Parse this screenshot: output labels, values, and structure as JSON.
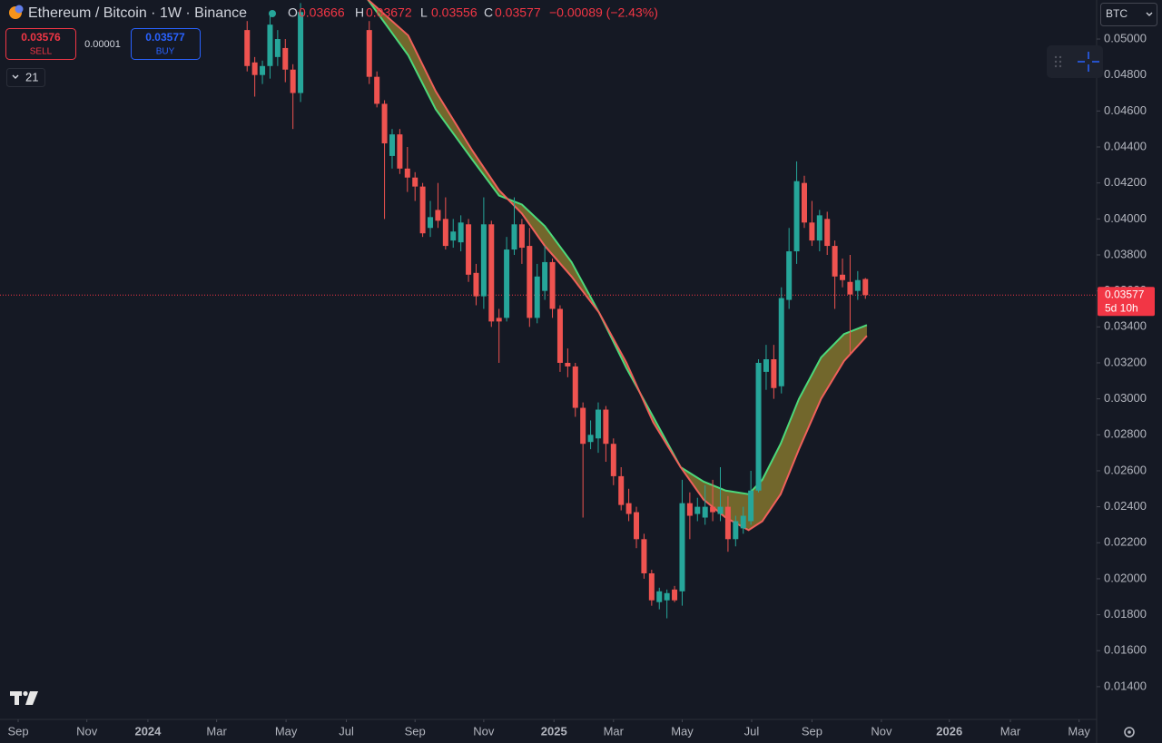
{
  "chart_data": {
    "type": "candlestick",
    "title": "Ethereum / Bitcoin · 1W · Binance",
    "ohlc_labels": {
      "o": "O",
      "h": "H",
      "l": "L",
      "c": "C"
    },
    "ohlc_values": {
      "o": "0.03666",
      "h": "0.03672",
      "l": "0.03556",
      "c": "0.03577",
      "change": "−0.00089 (−2.43%)"
    },
    "sell": {
      "price": "0.03576",
      "label": "SELL"
    },
    "spread": "0.00001",
    "buy": {
      "price": "0.03577",
      "label": "BUY"
    },
    "indicator_count": "21",
    "currency": "BTC",
    "last_price": 0.03577,
    "countdown": "5d 10h",
    "up_color": "#26a69a",
    "down_color": "#ef5350",
    "price_line_color": "#f23645",
    "ribbon_fill": "#8a7a2e",
    "grid": false,
    "ylim": [
      0.01218,
      0.05217
    ],
    "yticks": [
      {
        "value": 0.014,
        "label": "0.01400"
      },
      {
        "value": 0.016,
        "label": "0.01600"
      },
      {
        "value": 0.018,
        "label": "0.01800"
      },
      {
        "value": 0.02,
        "label": "0.02000"
      },
      {
        "value": 0.022,
        "label": "0.02200"
      },
      {
        "value": 0.024,
        "label": "0.02400"
      },
      {
        "value": 0.026,
        "label": "0.02600"
      },
      {
        "value": 0.028,
        "label": "0.02800"
      },
      {
        "value": 0.03,
        "label": "0.03000"
      },
      {
        "value": 0.032,
        "label": "0.03200"
      },
      {
        "value": 0.034,
        "label": "0.03400"
      },
      {
        "value": 0.036,
        "label": "0.03600"
      },
      {
        "value": 0.038,
        "label": "0.03800"
      },
      {
        "value": 0.04,
        "label": "0.04000"
      },
      {
        "value": 0.042,
        "label": "0.04200"
      },
      {
        "value": 0.044,
        "label": "0.04400"
      },
      {
        "value": 0.046,
        "label": "0.04600"
      },
      {
        "value": 0.048,
        "label": "0.04800"
      },
      {
        "value": 0.05,
        "label": "0.05000"
      }
    ],
    "xlim": [
      -2.38,
      141.3
    ],
    "xticks": [
      {
        "value": 0,
        "label": "Sep"
      },
      {
        "value": 9.0,
        "label": "Nov"
      },
      {
        "value": 17.0,
        "label": "2024"
      },
      {
        "value": 26.0,
        "label": "Mar"
      },
      {
        "value": 35.1,
        "label": "May"
      },
      {
        "value": 43.0,
        "label": "Jul"
      },
      {
        "value": 52.0,
        "label": "Sep"
      },
      {
        "value": 61.0,
        "label": "Nov"
      },
      {
        "value": 70.2,
        "label": "2025"
      },
      {
        "value": 78.0,
        "label": "Mar"
      },
      {
        "value": 87.0,
        "label": "May"
      },
      {
        "value": 96.1,
        "label": "Jul"
      },
      {
        "value": 104.0,
        "label": "Sep"
      },
      {
        "value": 113.1,
        "label": "Nov"
      },
      {
        "value": 122.0,
        "label": "2026"
      },
      {
        "value": 130.0,
        "label": "Mar"
      },
      {
        "value": 139.0,
        "label": "May"
      }
    ],
    "candles": {
      "x": [
        30,
        31,
        32,
        33,
        34,
        35,
        36,
        37,
        46,
        47,
        48,
        49,
        50,
        51,
        52,
        53,
        54,
        55,
        56,
        57,
        58,
        59,
        60,
        61,
        62,
        63,
        64,
        65,
        66,
        67,
        68,
        69,
        70,
        71,
        72,
        73,
        74,
        75,
        76,
        77,
        78,
        79,
        80,
        81,
        82,
        83,
        84,
        85,
        86,
        87,
        88,
        89,
        90,
        91,
        92,
        93,
        94,
        95,
        96,
        97,
        98,
        99,
        100,
        101,
        102,
        103,
        104,
        105,
        106,
        107,
        108,
        109,
        110,
        111
      ],
      "open": [
        0.0505,
        0.0487,
        0.048,
        0.0485,
        0.049,
        0.0495,
        0.0483,
        0.047,
        0.0505,
        0.0479,
        0.0464,
        0.0435,
        0.0447,
        0.0428,
        0.0423,
        0.0418,
        0.0395,
        0.0405,
        0.04,
        0.0388,
        0.0387,
        0.0397,
        0.037,
        0.0357,
        0.0397,
        0.0345,
        0.0345,
        0.0383,
        0.0397,
        0.0385,
        0.0345,
        0.036,
        0.0376,
        0.035,
        0.032,
        0.0318,
        0.0295,
        0.0276,
        0.0278,
        0.0294,
        0.0275,
        0.0257,
        0.0242,
        0.0237,
        0.0222,
        0.0203,
        0.0187,
        0.0188,
        0.0194,
        0.0193,
        0.0242,
        0.0236,
        0.0234,
        0.024,
        0.0236,
        0.024,
        0.0222,
        0.0228,
        0.0232,
        0.0249,
        0.0315,
        0.0322,
        0.0307,
        0.0355,
        0.0382,
        0.042,
        0.0398,
        0.0388,
        0.04,
        0.0385,
        0.0369,
        0.0365,
        0.036,
        0.03666
      ],
      "high": [
        0.051,
        0.049,
        0.0488,
        0.0515,
        0.0505,
        0.05,
        0.0486,
        0.052,
        0.051,
        0.0482,
        0.0466,
        0.045,
        0.045,
        0.044,
        0.0426,
        0.042,
        0.041,
        0.042,
        0.0412,
        0.04,
        0.0402,
        0.04,
        0.0375,
        0.0412,
        0.0399,
        0.035,
        0.039,
        0.0412,
        0.04,
        0.0395,
        0.0375,
        0.0385,
        0.0378,
        0.0352,
        0.0328,
        0.032,
        0.0298,
        0.0288,
        0.0298,
        0.0296,
        0.0278,
        0.0262,
        0.025,
        0.024,
        0.0225,
        0.0205,
        0.0195,
        0.0194,
        0.0196,
        0.0255,
        0.0248,
        0.0245,
        0.0252,
        0.0255,
        0.0262,
        0.0246,
        0.0235,
        0.024,
        0.026,
        0.0322,
        0.033,
        0.033,
        0.0362,
        0.0395,
        0.0432,
        0.0424,
        0.041,
        0.0405,
        0.0404,
        0.0388,
        0.0378,
        0.038,
        0.0371,
        0.03672
      ],
      "low": [
        0.0482,
        0.0468,
        0.0475,
        0.0478,
        0.0485,
        0.0476,
        0.045,
        0.0465,
        0.0475,
        0.0462,
        0.04,
        0.0428,
        0.0425,
        0.0415,
        0.041,
        0.039,
        0.039,
        0.0395,
        0.0383,
        0.0384,
        0.0382,
        0.0365,
        0.0352,
        0.035,
        0.034,
        0.032,
        0.0343,
        0.038,
        0.0375,
        0.034,
        0.0342,
        0.0355,
        0.0345,
        0.0315,
        0.0312,
        0.029,
        0.0234,
        0.0272,
        0.027,
        0.0265,
        0.0252,
        0.0238,
        0.0232,
        0.0217,
        0.02,
        0.0185,
        0.0183,
        0.0178,
        0.0187,
        0.0185,
        0.0222,
        0.0232,
        0.023,
        0.0232,
        0.0232,
        0.0215,
        0.0218,
        0.0225,
        0.023,
        0.0248,
        0.0305,
        0.03,
        0.0303,
        0.035,
        0.0375,
        0.0395,
        0.0385,
        0.0382,
        0.038,
        0.035,
        0.0362,
        0.0325,
        0.0355,
        0.03556
      ],
      "close": [
        0.0485,
        0.048,
        0.0485,
        0.0508,
        0.05,
        0.0483,
        0.047,
        0.0515,
        0.0479,
        0.0464,
        0.0442,
        0.0447,
        0.0428,
        0.0423,
        0.0418,
        0.0392,
        0.0401,
        0.0399,
        0.0385,
        0.0393,
        0.0398,
        0.0369,
        0.0357,
        0.0397,
        0.0343,
        0.0343,
        0.0383,
        0.0397,
        0.0384,
        0.0345,
        0.0368,
        0.0376,
        0.035,
        0.032,
        0.0318,
        0.0295,
        0.0275,
        0.028,
        0.0294,
        0.0275,
        0.0257,
        0.0241,
        0.0236,
        0.0222,
        0.0203,
        0.0188,
        0.0193,
        0.0192,
        0.0188,
        0.0242,
        0.0235,
        0.024,
        0.024,
        0.0237,
        0.024,
        0.0222,
        0.0232,
        0.0235,
        0.0249,
        0.032,
        0.0322,
        0.0306,
        0.0356,
        0.0382,
        0.0421,
        0.0398,
        0.0388,
        0.0402,
        0.0385,
        0.0368,
        0.0366,
        0.0358,
        0.0366,
        0.03577
      ]
    },
    "lines": [
      {
        "color": "#4cd97b",
        "x": [
          45.8,
          51.1,
          54.7,
          59.5,
          63.0,
          66.0,
          69.0,
          72.5,
          76.1,
          79.7,
          83.2,
          86.8,
          89.8,
          92.7,
          95.7,
          97.5,
          99.9,
          102.3,
          105.2,
          108.2,
          111.2
        ],
        "values": [
          0.0522,
          0.0491,
          0.0461,
          0.0433,
          0.0413,
          0.0408,
          0.0396,
          0.0376,
          0.0348,
          0.0317,
          0.029,
          0.0262,
          0.0254,
          0.0249,
          0.0247,
          0.0255,
          0.0275,
          0.03,
          0.0323,
          0.0336,
          0.0341
        ]
      },
      {
        "color": "#f0605a",
        "x": [
          45.8,
          51.1,
          54.7,
          59.5,
          63.0,
          66.0,
          69.0,
          72.5,
          76.1,
          79.7,
          83.2,
          86.8,
          89.8,
          92.7,
          95.7,
          97.5,
          99.9,
          102.3,
          105.2,
          108.2,
          111.2
        ],
        "values": [
          0.0522,
          0.0502,
          0.0471,
          0.0438,
          0.0416,
          0.0403,
          0.0385,
          0.0368,
          0.0348,
          0.032,
          0.0287,
          0.0262,
          0.0244,
          0.0234,
          0.0227,
          0.0232,
          0.0247,
          0.0272,
          0.03,
          0.0321,
          0.0335
        ]
      }
    ]
  }
}
